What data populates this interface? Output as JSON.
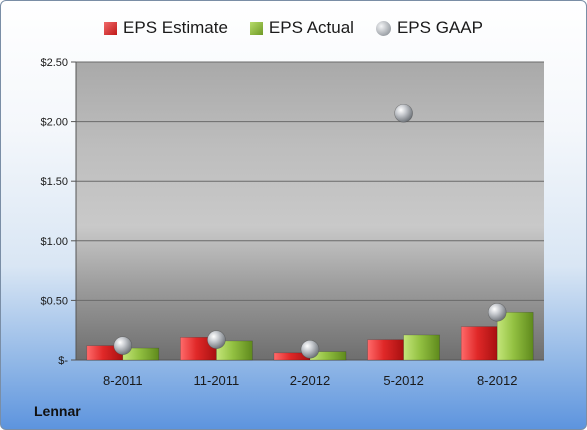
{
  "chart_data": {
    "type": "bar",
    "title": "",
    "xlabel": "",
    "ylabel": "",
    "categories": [
      "8-2011",
      "11-2011",
      "2-2012",
      "5-2012",
      "8-2012"
    ],
    "series": [
      {
        "name": "EPS Estimate",
        "kind": "bar",
        "color": "#d42020",
        "values": [
          0.12,
          0.19,
          0.06,
          0.17,
          0.28
        ]
      },
      {
        "name": "EPS Actual",
        "kind": "bar",
        "color": "#8db83a",
        "values": [
          0.1,
          0.16,
          0.07,
          0.21,
          0.4
        ]
      },
      {
        "name": "EPS GAAP",
        "kind": "scatter",
        "color": "#b8bcc2",
        "values": [
          0.12,
          0.17,
          0.09,
          2.07,
          0.4
        ]
      }
    ],
    "ylim": [
      0,
      2.5
    ],
    "yticks": [
      0,
      0.5,
      1.0,
      1.5,
      2.0,
      2.5
    ],
    "ytick_labels": [
      "$-",
      "$0.50",
      "$1.00",
      "$1.50",
      "$2.00",
      "$2.50"
    ],
    "grid": true,
    "legend_position": "top"
  },
  "footer": {
    "company": "Lennar"
  }
}
